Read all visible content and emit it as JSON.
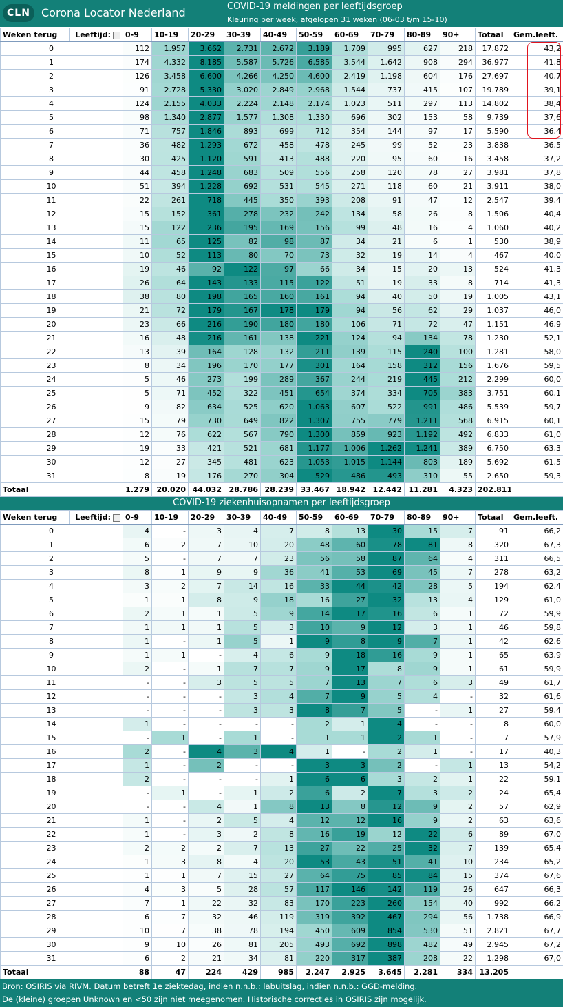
{
  "header": {
    "logo": "CLN",
    "brand": "Corona Locator Nederland"
  },
  "tables": [
    {
      "title": "COVID-19 meldingen per leeftijdsgroep",
      "subtitle": "Kleuring per week, afgelopen 31 weken (06-03 t/m 15-10)",
      "columns": [
        "Weken terug",
        "Leeftijd:",
        "0-9",
        "10-19",
        "20-29",
        "30-39",
        "40-49",
        "50-59",
        "60-69",
        "70-79",
        "80-89",
        "90+",
        "Totaal",
        "Gem.leeft."
      ],
      "rows": [
        [
          "0",
          "112",
          "1.957",
          "3.662",
          "2.731",
          "2.672",
          "3.189",
          "1.709",
          "995",
          "627",
          "218",
          "17.872",
          "43,2"
        ],
        [
          "1",
          "174",
          "4.332",
          "8.185",
          "5.587",
          "5.726",
          "6.585",
          "3.544",
          "1.642",
          "908",
          "294",
          "36.977",
          "41,8"
        ],
        [
          "2",
          "126",
          "3.458",
          "6.600",
          "4.266",
          "4.250",
          "4.600",
          "2.419",
          "1.198",
          "604",
          "176",
          "27.697",
          "40,7"
        ],
        [
          "3",
          "91",
          "2.728",
          "5.330",
          "3.020",
          "2.849",
          "2.968",
          "1.544",
          "737",
          "415",
          "107",
          "19.789",
          "39,1"
        ],
        [
          "4",
          "124",
          "2.155",
          "4.033",
          "2.224",
          "2.148",
          "2.174",
          "1.023",
          "511",
          "297",
          "113",
          "14.802",
          "38,4"
        ],
        [
          "5",
          "98",
          "1.340",
          "2.877",
          "1.577",
          "1.308",
          "1.330",
          "696",
          "302",
          "153",
          "58",
          "9.739",
          "37,6"
        ],
        [
          "6",
          "71",
          "757",
          "1.846",
          "893",
          "699",
          "712",
          "354",
          "144",
          "97",
          "17",
          "5.590",
          "36,4"
        ],
        [
          "7",
          "36",
          "482",
          "1.293",
          "672",
          "458",
          "478",
          "245",
          "99",
          "52",
          "23",
          "3.838",
          "36,5"
        ],
        [
          "8",
          "30",
          "425",
          "1.120",
          "591",
          "413",
          "488",
          "220",
          "95",
          "60",
          "16",
          "3.458",
          "37,2"
        ],
        [
          "9",
          "44",
          "458",
          "1.248",
          "683",
          "509",
          "556",
          "258",
          "120",
          "78",
          "27",
          "3.981",
          "37,8"
        ],
        [
          "10",
          "51",
          "394",
          "1.228",
          "692",
          "531",
          "545",
          "271",
          "118",
          "60",
          "21",
          "3.911",
          "38,0"
        ],
        [
          "11",
          "22",
          "261",
          "718",
          "445",
          "350",
          "393",
          "208",
          "91",
          "47",
          "12",
          "2.547",
          "39,4"
        ],
        [
          "12",
          "15",
          "152",
          "361",
          "278",
          "232",
          "242",
          "134",
          "58",
          "26",
          "8",
          "1.506",
          "40,4"
        ],
        [
          "13",
          "15",
          "122",
          "236",
          "195",
          "169",
          "156",
          "99",
          "48",
          "16",
          "4",
          "1.060",
          "40,2"
        ],
        [
          "14",
          "11",
          "65",
          "125",
          "82",
          "98",
          "87",
          "34",
          "21",
          "6",
          "1",
          "530",
          "38,9"
        ],
        [
          "15",
          "10",
          "52",
          "113",
          "80",
          "70",
          "73",
          "32",
          "19",
          "14",
          "4",
          "467",
          "40,0"
        ],
        [
          "16",
          "19",
          "46",
          "92",
          "122",
          "97",
          "66",
          "34",
          "15",
          "20",
          "13",
          "524",
          "41,3"
        ],
        [
          "17",
          "26",
          "64",
          "143",
          "133",
          "115",
          "122",
          "51",
          "19",
          "33",
          "8",
          "714",
          "41,3"
        ],
        [
          "18",
          "38",
          "80",
          "198",
          "165",
          "160",
          "161",
          "94",
          "40",
          "50",
          "19",
          "1.005",
          "43,1"
        ],
        [
          "19",
          "21",
          "72",
          "179",
          "167",
          "178",
          "179",
          "94",
          "56",
          "62",
          "29",
          "1.037",
          "46,0"
        ],
        [
          "20",
          "23",
          "66",
          "216",
          "190",
          "180",
          "180",
          "106",
          "71",
          "72",
          "47",
          "1.151",
          "46,9"
        ],
        [
          "21",
          "16",
          "48",
          "216",
          "161",
          "138",
          "221",
          "124",
          "94",
          "134",
          "78",
          "1.230",
          "52,1"
        ],
        [
          "22",
          "13",
          "39",
          "164",
          "128",
          "132",
          "211",
          "139",
          "115",
          "240",
          "100",
          "1.281",
          "58,0"
        ],
        [
          "23",
          "8",
          "34",
          "196",
          "170",
          "177",
          "301",
          "164",
          "158",
          "312",
          "156",
          "1.676",
          "59,5"
        ],
        [
          "24",
          "5",
          "46",
          "273",
          "199",
          "289",
          "367",
          "244",
          "219",
          "445",
          "212",
          "2.299",
          "60,0"
        ],
        [
          "25",
          "5",
          "71",
          "452",
          "322",
          "451",
          "654",
          "374",
          "334",
          "705",
          "383",
          "3.751",
          "60,1"
        ],
        [
          "26",
          "9",
          "82",
          "634",
          "525",
          "620",
          "1.063",
          "607",
          "522",
          "991",
          "486",
          "5.539",
          "59,7"
        ],
        [
          "27",
          "15",
          "79",
          "730",
          "649",
          "822",
          "1.307",
          "755",
          "779",
          "1.211",
          "568",
          "6.915",
          "60,1"
        ],
        [
          "28",
          "12",
          "76",
          "622",
          "567",
          "790",
          "1.300",
          "859",
          "923",
          "1.192",
          "492",
          "6.833",
          "61,0"
        ],
        [
          "29",
          "19",
          "33",
          "421",
          "521",
          "681",
          "1.177",
          "1.006",
          "1.262",
          "1.241",
          "389",
          "6.750",
          "63,3"
        ],
        [
          "30",
          "12",
          "27",
          "345",
          "481",
          "623",
          "1.053",
          "1.015",
          "1.144",
          "803",
          "189",
          "5.692",
          "61,5"
        ],
        [
          "31",
          "8",
          "19",
          "176",
          "270",
          "304",
          "529",
          "486",
          "493",
          "310",
          "55",
          "2.650",
          "59,3"
        ]
      ],
      "total": [
        "Totaal",
        "1.279",
        "20.020",
        "44.032",
        "28.786",
        "28.239",
        "33.467",
        "18.942",
        "12.442",
        "11.281",
        "4.323",
        "202.811"
      ]
    },
    {
      "title": "COVID-19 ziekenhuisopnamen per leeftijdsgroep",
      "columns": [
        "Weken terug",
        "Leeftijd:",
        "0-9",
        "10-19",
        "20-29",
        "30-39",
        "40-49",
        "50-59",
        "60-69",
        "70-79",
        "80-89",
        "90+",
        "Totaal",
        "Gem.leeft."
      ],
      "rows": [
        [
          "0",
          "4",
          "-",
          "3",
          "4",
          "7",
          "8",
          "13",
          "30",
          "15",
          "7",
          "91",
          "66,2"
        ],
        [
          "1",
          "6",
          "2",
          "7",
          "10",
          "20",
          "48",
          "60",
          "78",
          "81",
          "8",
          "320",
          "67,3"
        ],
        [
          "2",
          "5",
          "-",
          "7",
          "7",
          "23",
          "56",
          "58",
          "87",
          "64",
          "4",
          "311",
          "66,5"
        ],
        [
          "3",
          "8",
          "1",
          "9",
          "9",
          "36",
          "41",
          "53",
          "69",
          "45",
          "7",
          "278",
          "63,2"
        ],
        [
          "4",
          "3",
          "2",
          "7",
          "14",
          "16",
          "33",
          "44",
          "42",
          "28",
          "5",
          "194",
          "62,4"
        ],
        [
          "5",
          "1",
          "1",
          "8",
          "9",
          "18",
          "16",
          "27",
          "32",
          "13",
          "4",
          "129",
          "61,0"
        ],
        [
          "6",
          "2",
          "1",
          "1",
          "5",
          "9",
          "14",
          "17",
          "16",
          "6",
          "1",
          "72",
          "59,9"
        ],
        [
          "7",
          "1",
          "1",
          "1",
          "5",
          "3",
          "10",
          "9",
          "12",
          "3",
          "1",
          "46",
          "59,8"
        ],
        [
          "8",
          "1",
          "-",
          "1",
          "5",
          "1",
          "9",
          "8",
          "9",
          "7",
          "1",
          "42",
          "62,6"
        ],
        [
          "9",
          "1",
          "1",
          "-",
          "4",
          "6",
          "9",
          "18",
          "16",
          "9",
          "1",
          "65",
          "63,9"
        ],
        [
          "10",
          "2",
          "-",
          "1",
          "7",
          "7",
          "9",
          "17",
          "8",
          "9",
          "1",
          "61",
          "59,9"
        ],
        [
          "11",
          "-",
          "-",
          "3",
          "5",
          "5",
          "7",
          "13",
          "7",
          "6",
          "3",
          "49",
          "61,7"
        ],
        [
          "12",
          "-",
          "-",
          "-",
          "3",
          "4",
          "7",
          "9",
          "5",
          "4",
          "-",
          "32",
          "61,6"
        ],
        [
          "13",
          "-",
          "-",
          "-",
          "3",
          "3",
          "8",
          "7",
          "5",
          "-",
          "1",
          "27",
          "59,4"
        ],
        [
          "14",
          "1",
          "-",
          "-",
          "-",
          "-",
          "2",
          "1",
          "4",
          "-",
          "-",
          "8",
          "60,0"
        ],
        [
          "15",
          "-",
          "1",
          "-",
          "1",
          "-",
          "1",
          "1",
          "2",
          "1",
          "-",
          "7",
          "57,9"
        ],
        [
          "16",
          "2",
          "-",
          "4",
          "3",
          "4",
          "1",
          "-",
          "2",
          "1",
          "-",
          "17",
          "40,3"
        ],
        [
          "17",
          "1",
          "-",
          "2",
          "-",
          "-",
          "3",
          "3",
          "2",
          "-",
          "1",
          "13",
          "54,2"
        ],
        [
          "18",
          "2",
          "-",
          "-",
          "-",
          "1",
          "6",
          "6",
          "3",
          "2",
          "1",
          "22",
          "59,1"
        ],
        [
          "19",
          "-",
          "1",
          "-",
          "1",
          "2",
          "6",
          "2",
          "7",
          "3",
          "2",
          "24",
          "65,4"
        ],
        [
          "20",
          "-",
          "-",
          "4",
          "1",
          "8",
          "13",
          "8",
          "12",
          "9",
          "2",
          "57",
          "62,9"
        ],
        [
          "21",
          "1",
          "-",
          "2",
          "5",
          "4",
          "12",
          "12",
          "16",
          "9",
          "2",
          "63",
          "63,6"
        ],
        [
          "22",
          "1",
          "-",
          "3",
          "2",
          "8",
          "16",
          "19",
          "12",
          "22",
          "6",
          "89",
          "67,0"
        ],
        [
          "23",
          "2",
          "2",
          "2",
          "7",
          "13",
          "27",
          "22",
          "25",
          "32",
          "7",
          "139",
          "65,4"
        ],
        [
          "24",
          "1",
          "3",
          "8",
          "4",
          "20",
          "53",
          "43",
          "51",
          "41",
          "10",
          "234",
          "65,2"
        ],
        [
          "25",
          "1",
          "1",
          "7",
          "15",
          "27",
          "64",
          "75",
          "85",
          "84",
          "15",
          "374",
          "67,6"
        ],
        [
          "26",
          "4",
          "3",
          "5",
          "28",
          "57",
          "117",
          "146",
          "142",
          "119",
          "26",
          "647",
          "66,3"
        ],
        [
          "27",
          "7",
          "1",
          "22",
          "32",
          "83",
          "170",
          "223",
          "260",
          "154",
          "40",
          "992",
          "66,2"
        ],
        [
          "28",
          "6",
          "7",
          "32",
          "46",
          "119",
          "319",
          "392",
          "467",
          "294",
          "56",
          "1.738",
          "66,9"
        ],
        [
          "29",
          "10",
          "7",
          "38",
          "78",
          "194",
          "450",
          "609",
          "854",
          "530",
          "51",
          "2.821",
          "67,7"
        ],
        [
          "30",
          "9",
          "10",
          "26",
          "81",
          "205",
          "493",
          "692",
          "898",
          "482",
          "49",
          "2.945",
          "67,2"
        ],
        [
          "31",
          "6",
          "2",
          "21",
          "34",
          "81",
          "220",
          "317",
          "387",
          "208",
          "22",
          "1.298",
          "67,0"
        ]
      ],
      "total": [
        "Totaal",
        "88",
        "47",
        "224",
        "429",
        "985",
        "2.247",
        "2.925",
        "3.645",
        "2.281",
        "334",
        "13.205"
      ]
    }
  ],
  "footer": [
    "Bron: OSIRIS via RIVM. Datum betreft 1e ziektedag, indien n.n.b.: labuitslag, indien n.n.b.: GGD-melding.",
    "De (kleine) groepen Unknown en <50 zijn niet meegenomen. Historische correcties in OSIRIS zijn mogelijk."
  ]
}
